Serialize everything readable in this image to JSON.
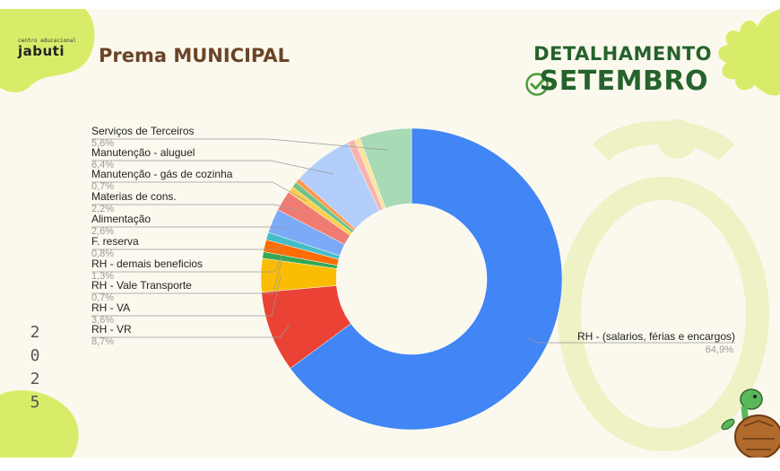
{
  "header": {
    "logo_small": "centro educacional",
    "logo_main": "jabuti",
    "title": "Prema MUNICIPAL",
    "detail": "DETALHAMENTO",
    "month": "SETEMBRO"
  },
  "year_digits": [
    "2",
    "0",
    "2",
    "5"
  ],
  "colors": {
    "title": "#6b4427",
    "accent_green": "#25632c",
    "check_green": "#4a9d3a",
    "blob_lime": "#d9ec6a"
  },
  "icons": [
    "check-circle-icon",
    "turtle-icon"
  ],
  "chart_data": {
    "type": "pie",
    "donut": true,
    "start_angle_deg": 0,
    "direction": "clockwise",
    "slices": [
      {
        "name": "RH - (salarios, férias e encargos)",
        "value": 64.9,
        "label": "64,9%",
        "color": "#4285f4"
      },
      {
        "name": "RH - VR",
        "value": 8.7,
        "label": "8,7%",
        "color": "#ea4335"
      },
      {
        "name": "RH - VA",
        "value": 3.6,
        "label": "3,6%",
        "color": "#fbbc04"
      },
      {
        "name": "RH - Vale Transporte",
        "value": 0.7,
        "label": "0,7%",
        "color": "#34a853"
      },
      {
        "name": "RH - demais beneficios",
        "value": 1.3,
        "label": "1,3%",
        "color": "#ff6d01"
      },
      {
        "name": "F. reserva",
        "value": 0.8,
        "label": "0,8%",
        "color": "#46bdc6"
      },
      {
        "name": "Alimentação",
        "value": 2.6,
        "label": "2,6%",
        "color": "#7baaf7"
      },
      {
        "name": "Materias de cons.",
        "value": 2.2,
        "label": "2,2%",
        "color": "#f07b72"
      },
      {
        "name": "Manutenção - gás de cozinha",
        "value": 0.7,
        "label": "0,7%",
        "color": "#fcd04f"
      },
      {
        "name": "",
        "value": 0.6,
        "label": "",
        "color": "#71c287"
      },
      {
        "name": "",
        "value": 0.5,
        "label": "",
        "color": "#ff994d"
      },
      {
        "name": "Manutenção - aluguel",
        "value": 6.4,
        "label": "6,4%",
        "color": "#b3cefb"
      },
      {
        "name": "",
        "value": 0.8,
        "label": "",
        "color": "#f7b4ae"
      },
      {
        "name": "",
        "value": 0.6,
        "label": "",
        "color": "#fde49b"
      },
      {
        "name": "Serviços de Terceiros",
        "value": 5.6,
        "label": "5,6%",
        "color": "#a8dab5"
      }
    ]
  }
}
